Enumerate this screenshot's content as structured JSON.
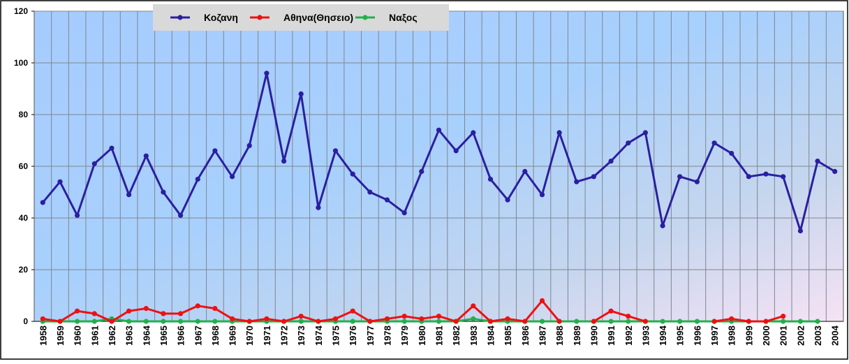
{
  "chart_data": {
    "type": "line",
    "title": "",
    "xlabel": "",
    "ylabel": "",
    "ylim": [
      0,
      120
    ],
    "yticks": [
      "0",
      "20",
      "40",
      "60",
      "80",
      "100",
      "120"
    ],
    "grid": true,
    "legend_position": "top-center",
    "x": [
      "1958",
      "1959",
      "1960",
      "1961",
      "1962",
      "1963",
      "1964",
      "1965",
      "1966",
      "1967",
      "1968",
      "1969",
      "1970",
      "1971",
      "1972",
      "1973",
      "1974",
      "1975",
      "1976",
      "1977",
      "1978",
      "1979",
      "1980",
      "1981",
      "1982",
      "1983",
      "1984",
      "1985",
      "1986",
      "1987",
      "1988",
      "1989",
      "1990",
      "1991",
      "1992",
      "1993",
      "1994",
      "1995",
      "1996",
      "1997",
      "1998",
      "1999",
      "2000",
      "2001",
      "2002",
      "2003",
      "2004"
    ],
    "series": [
      {
        "name": "Κοζανη",
        "color": "#2B1FA0",
        "values": [
          46,
          54,
          41,
          61,
          67,
          49,
          64,
          50,
          41,
          55,
          66,
          56,
          68,
          96,
          62,
          88,
          44,
          66,
          57,
          50,
          47,
          42,
          58,
          74,
          66,
          73,
          55,
          47,
          58,
          49,
          73,
          54,
          56,
          62,
          69,
          73,
          37,
          56,
          54,
          69,
          65,
          56,
          57,
          56,
          35,
          62,
          58
        ]
      },
      {
        "name": "Αθηνα(Θησειο)",
        "color": "#EE1111",
        "values": [
          1,
          0,
          4,
          3,
          0,
          4,
          5,
          3,
          3,
          6,
          5,
          1,
          0,
          1,
          0,
          2,
          0,
          1,
          4,
          0,
          1,
          2,
          1,
          2,
          0,
          6,
          0,
          1,
          0,
          8,
          0,
          null,
          0,
          4,
          2,
          0,
          null,
          null,
          null,
          0,
          1,
          0,
          0,
          2,
          null,
          null,
          null
        ]
      },
      {
        "name": "Ναξος",
        "color": "#22B04A",
        "values": [
          0,
          0,
          0,
          0,
          1,
          0,
          0,
          0,
          0,
          0,
          0,
          0,
          0,
          0,
          0,
          0,
          0,
          0,
          0,
          0,
          0,
          0,
          0,
          0,
          0,
          1,
          0,
          0,
          0,
          0,
          0,
          0,
          0,
          0,
          0,
          0,
          0,
          0,
          0,
          0,
          0,
          0,
          0,
          0,
          0,
          0,
          null
        ]
      }
    ]
  }
}
